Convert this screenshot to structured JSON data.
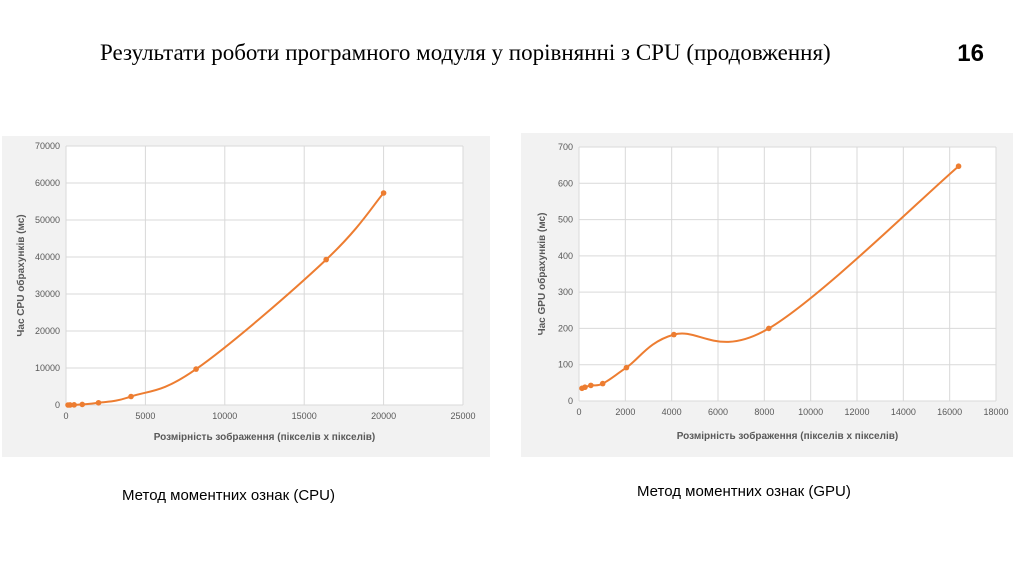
{
  "slide": {
    "title": "Результати роботи програмного модуля у порівнянні з CPU (продовження)",
    "number": "16"
  },
  "captions": {
    "cpu": "Метод моментних ознак (CPU)",
    "gpu": "Метод моментних ознак (GPU)"
  },
  "colors": {
    "series": "#ed7d31",
    "grid": "#d9d9d9",
    "panel_bg": "#f2f2f2",
    "text": "#595959"
  },
  "chart_data": [
    {
      "id": "cpu",
      "type": "line",
      "smooth": true,
      "markers": true,
      "title": "",
      "xlabel": "Розмірність зображення (пікселів х пікселів)",
      "ylabel": "Час CPU обрахунків (мс)",
      "xlim": [
        0,
        25000
      ],
      "ylim": [
        0,
        70000
      ],
      "xticks": [
        0,
        5000,
        10000,
        15000,
        20000,
        25000
      ],
      "yticks": [
        0,
        10000,
        20000,
        30000,
        40000,
        50000,
        60000,
        70000
      ],
      "grid": true,
      "legend": "none",
      "series": [
        {
          "x": [
            128,
            256,
            512,
            1024,
            2048,
            4096,
            8192,
            16384,
            20000
          ],
          "y": [
            0,
            10,
            40,
            150,
            600,
            2300,
            9700,
            39300,
            57300
          ]
        }
      ]
    },
    {
      "id": "gpu",
      "type": "line",
      "smooth": true,
      "markers": true,
      "title": "",
      "xlabel": "Розмірність зображення (пікселів х пікселів)",
      "ylabel": "Час GPU обрахунків (мс)",
      "xlim": [
        0,
        18000
      ],
      "ylim": [
        0,
        700
      ],
      "xticks": [
        0,
        2000,
        4000,
        6000,
        8000,
        10000,
        12000,
        14000,
        16000,
        18000
      ],
      "yticks": [
        0,
        100,
        200,
        300,
        400,
        500,
        600,
        700
      ],
      "grid": true,
      "legend": "none",
      "series": [
        {
          "x": [
            128,
            256,
            512,
            1024,
            2048,
            4096,
            8192,
            16384
          ],
          "y": [
            35,
            38,
            43,
            48,
            92,
            183,
            200,
            647
          ]
        }
      ]
    }
  ]
}
